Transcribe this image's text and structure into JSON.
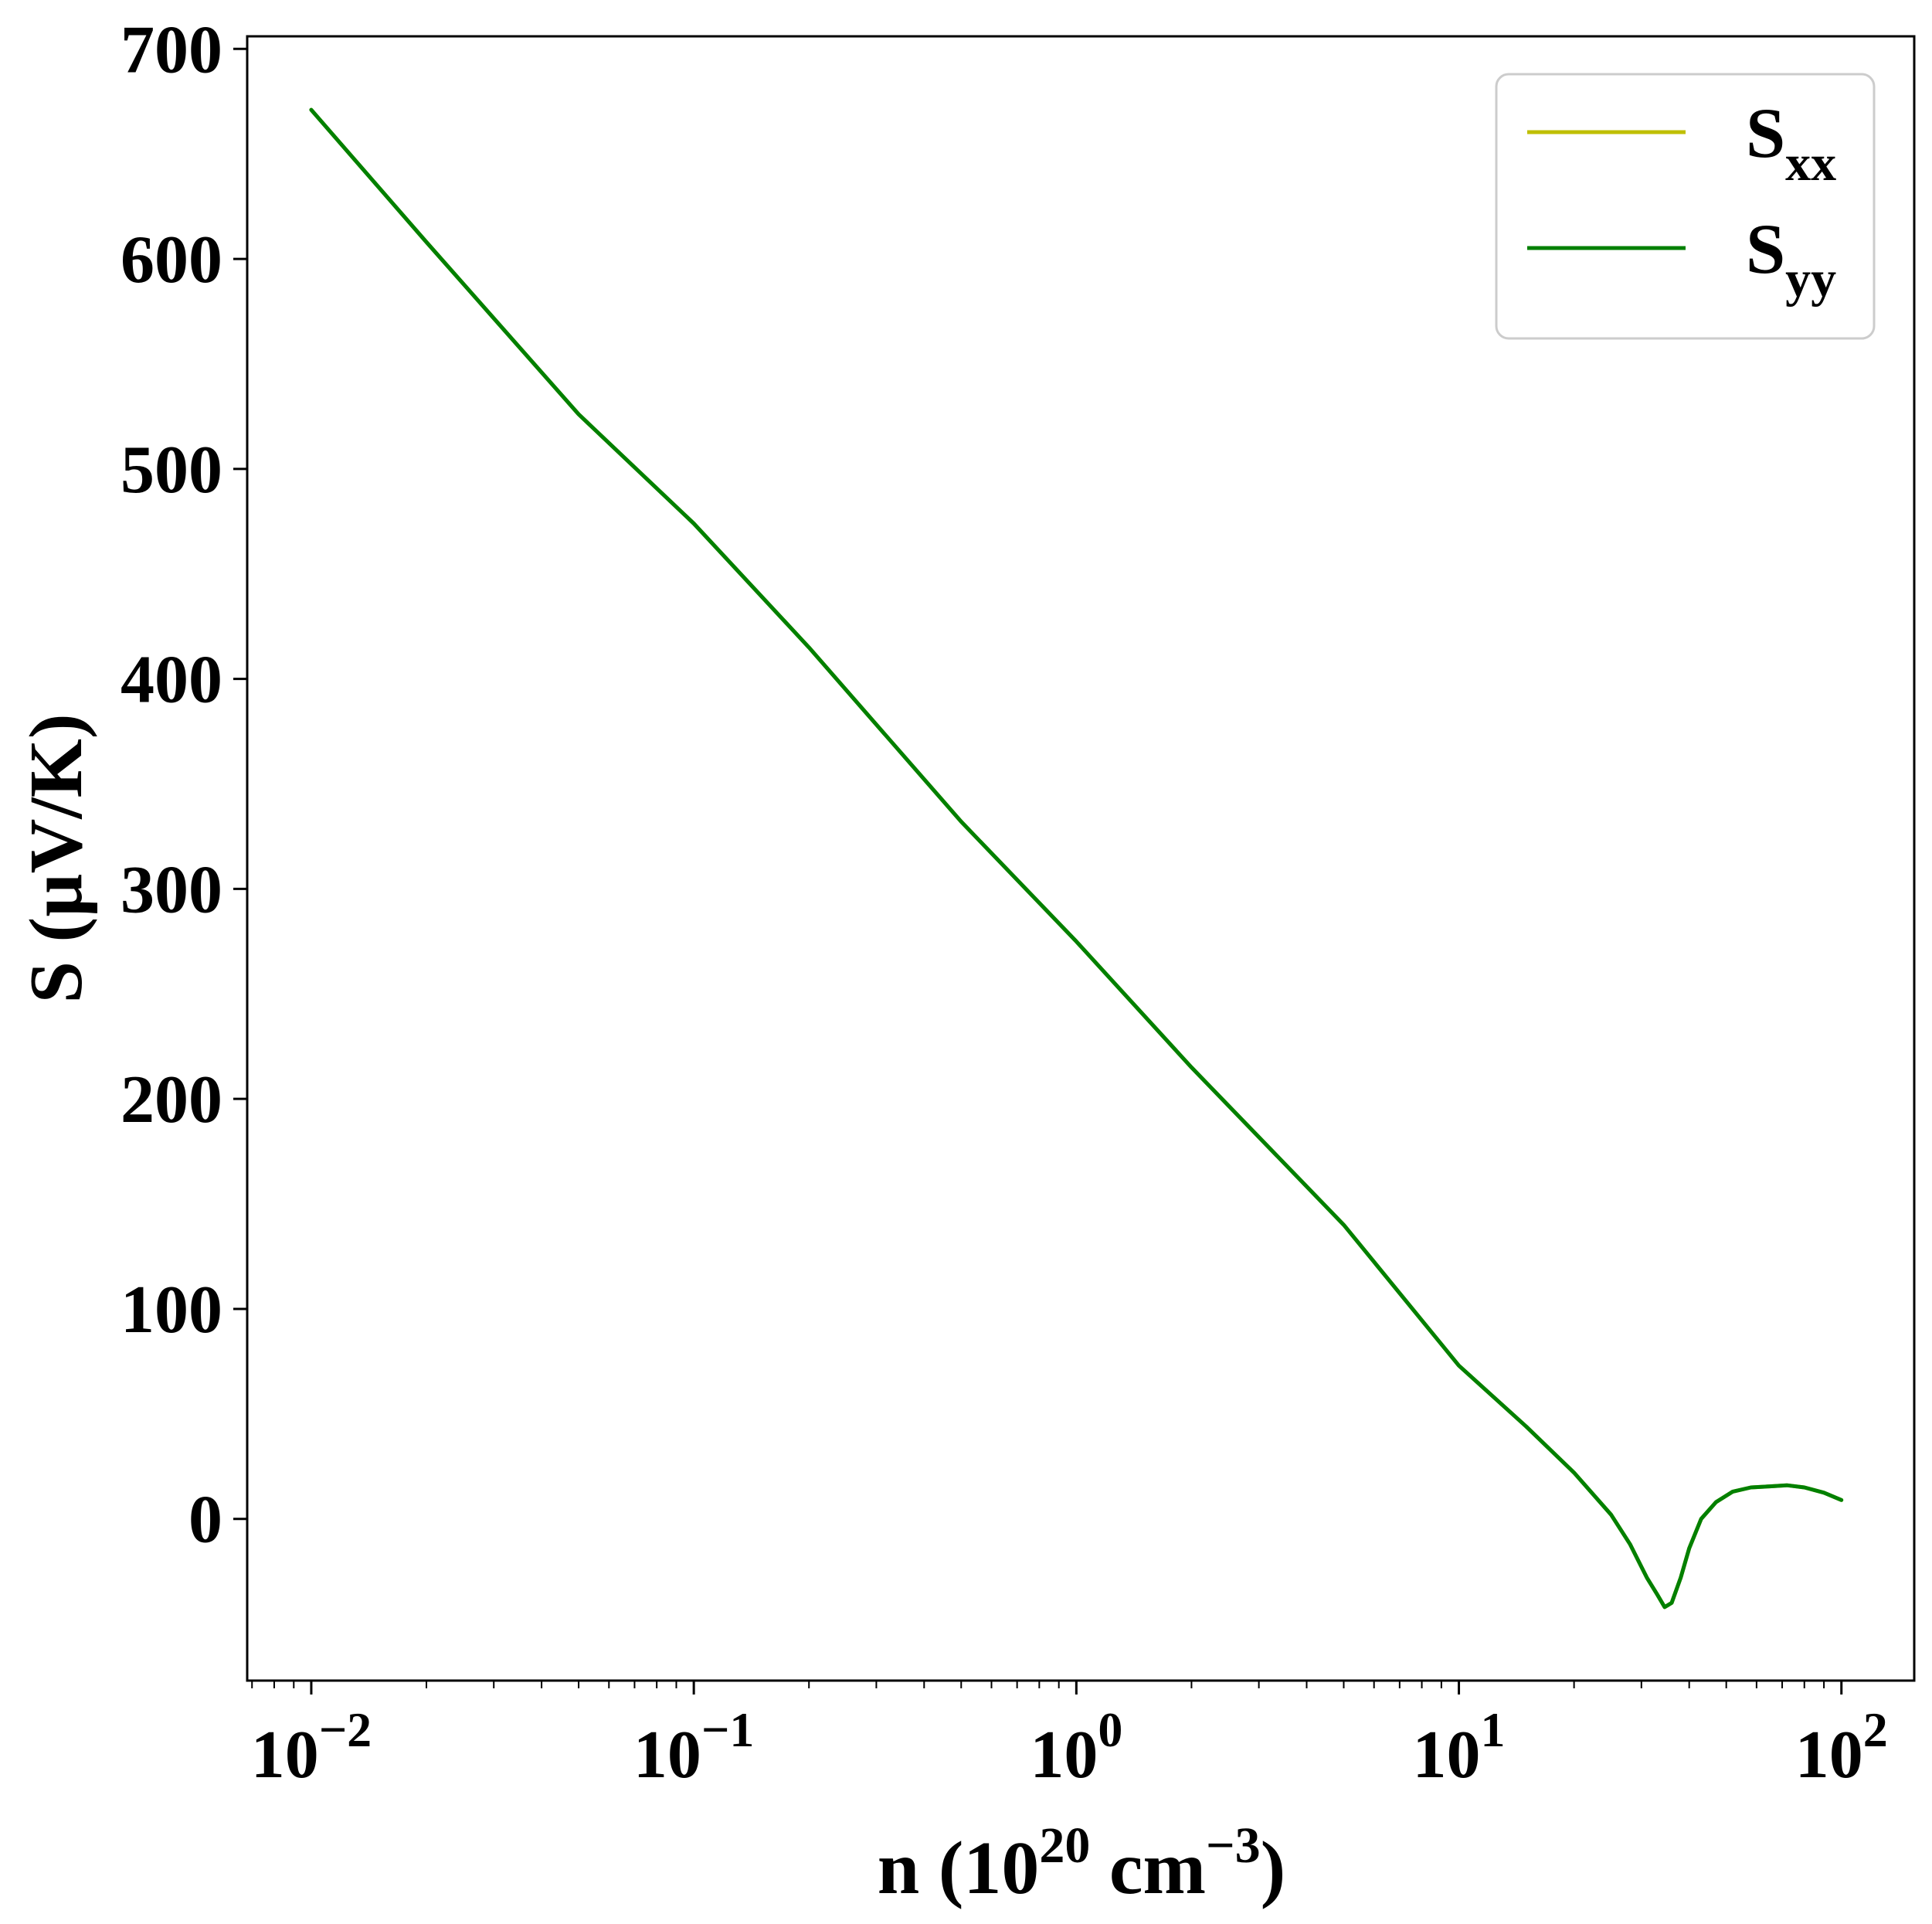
{
  "chart_data": {
    "type": "line",
    "xscale": "log",
    "xlim": [
      0.0068,
      155
    ],
    "ylim": [
      -77,
      706
    ],
    "xticks": [
      {
        "value": 0.01,
        "base": "10",
        "exp": "−2"
      },
      {
        "value": 0.1,
        "base": "10",
        "exp": "−1"
      },
      {
        "value": 1,
        "base": "10",
        "exp": "0"
      },
      {
        "value": 10,
        "base": "10",
        "exp": "1"
      },
      {
        "value": 100,
        "base": "10",
        "exp": "2"
      }
    ],
    "yticks": [
      0,
      100,
      200,
      300,
      400,
      500,
      600,
      700
    ],
    "xlabel": {
      "prefix": "n (10",
      "sup1": "20",
      "middle": " cm",
      "sup2": "−3",
      "suffix": ")"
    },
    "ylabel": "S (µV/K)",
    "grid": false,
    "legend": {
      "position": "top-right",
      "entries": [
        {
          "main": "S",
          "sub": "xx",
          "series": 0
        },
        {
          "main": "S",
          "sub": "yy",
          "series": 1
        }
      ]
    },
    "series": [
      {
        "name": "Sxx",
        "color": "#bfbf00",
        "x": [
          0.01,
          0.02,
          0.05,
          0.1,
          0.2,
          0.5,
          1,
          2,
          5,
          10,
          15,
          20,
          25,
          28,
          31,
          33,
          34.5,
          36,
          38,
          40,
          43,
          47,
          52,
          58,
          65,
          72,
          80,
          90,
          100
        ],
        "y": [
          671,
          608,
          526,
          474,
          415,
          332,
          275,
          215,
          140,
          73,
          44,
          22,
          2,
          -12,
          -28,
          -36,
          -42,
          -40,
          -28,
          -14,
          0,
          8,
          13,
          15,
          15.5,
          16,
          15,
          12.5,
          9
        ]
      },
      {
        "name": "Syy",
        "color": "#008000",
        "x": [
          0.01,
          0.02,
          0.05,
          0.1,
          0.2,
          0.5,
          1,
          2,
          5,
          10,
          15,
          20,
          25,
          28,
          31,
          33,
          34.5,
          36,
          38,
          40,
          43,
          47,
          52,
          58,
          65,
          72,
          80,
          90,
          100
        ],
        "y": [
          671,
          608,
          526,
          474,
          415,
          332,
          275,
          215,
          140,
          73,
          44,
          22,
          2,
          -12,
          -28,
          -36,
          -42,
          -40,
          -28,
          -14,
          0,
          8,
          13,
          15,
          15.5,
          16,
          15,
          12.5,
          9
        ]
      }
    ]
  }
}
